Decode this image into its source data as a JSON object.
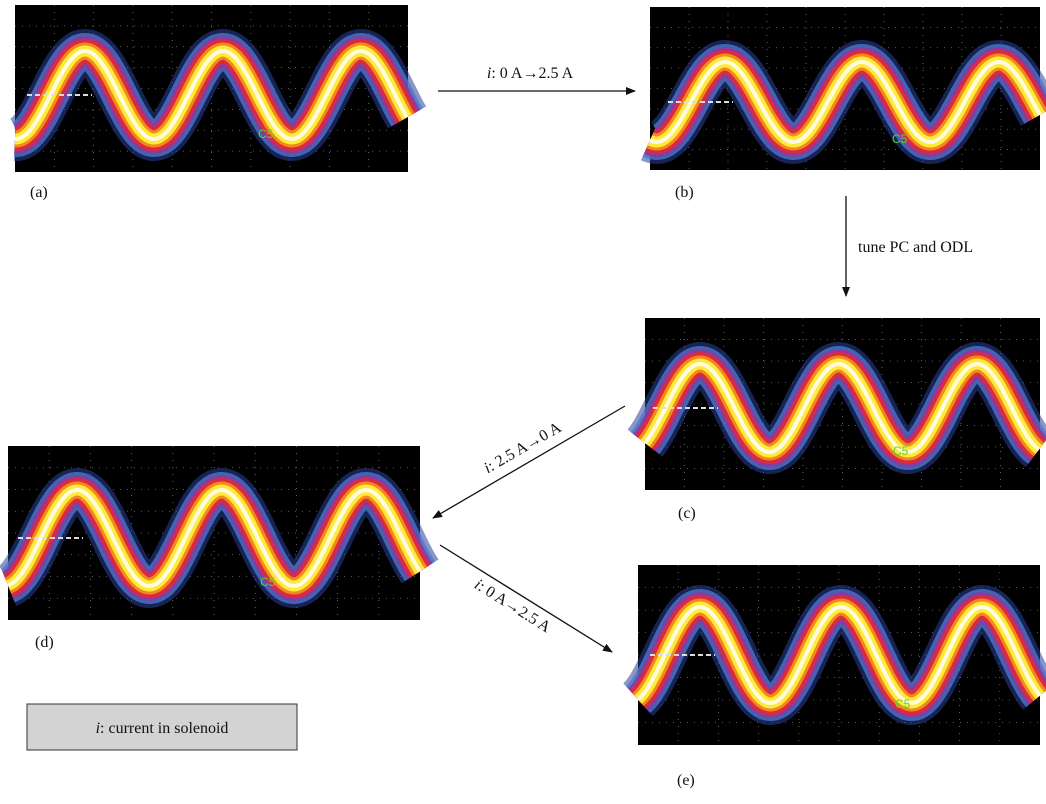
{
  "panels": [
    {
      "label": "(a)",
      "marker": "C5"
    },
    {
      "label": "(b)",
      "marker": "C5"
    },
    {
      "label": "(c)",
      "marker": "C5"
    },
    {
      "label": "(d)",
      "marker": "C5"
    },
    {
      "label": "(e)",
      "marker": "C5"
    }
  ],
  "arrows": [
    {
      "var": "i",
      "text": ": 0 A→2.5 A"
    },
    {
      "text": "tune PC and ODL"
    },
    {
      "var": "i",
      "text": ": 2.5 A→0 A"
    },
    {
      "var": "i",
      "text": ": 0 A→2.5 A"
    }
  ],
  "legend": {
    "var": "i",
    "text": ": current in solenoid"
  }
}
